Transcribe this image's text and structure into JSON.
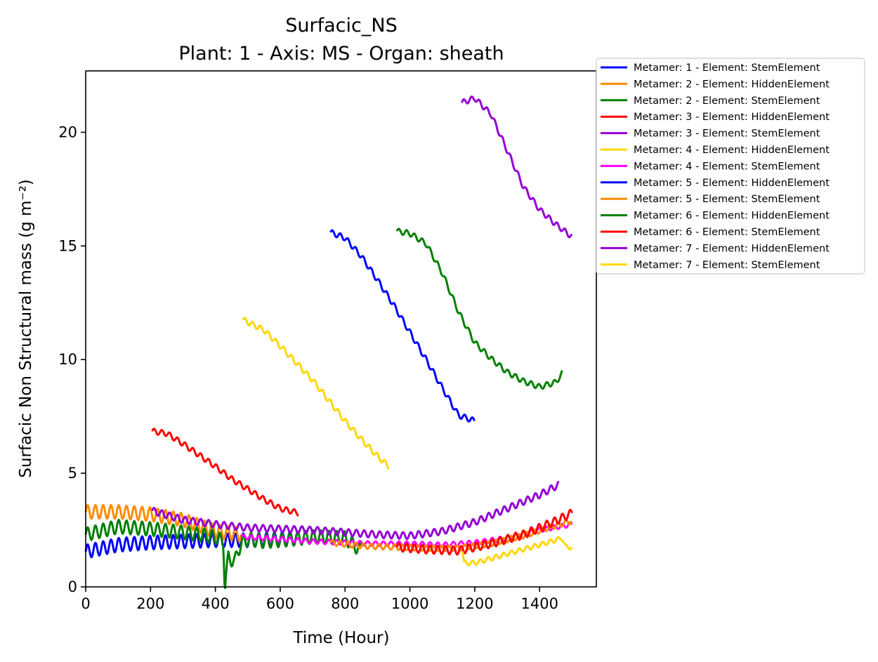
{
  "chart_data": {
    "type": "line",
    "title": "Surfacic_NS",
    "subtitle": "Plant: 1 - Axis: MS - Organ: sheath",
    "xlabel": "Time (Hour)",
    "ylabel": "Surfacic Non Structural mass (g m⁻²)",
    "xlim": [
      0,
      1575
    ],
    "ylim": [
      0,
      22.7
    ],
    "xticks": [
      "0",
      "200",
      "400",
      "600",
      "800",
      "1000",
      "1200",
      "1400"
    ],
    "xtick_values": [
      0,
      200,
      400,
      600,
      800,
      1000,
      1200,
      1400
    ],
    "yticks": [
      "0",
      "5",
      "10",
      "15",
      "20"
    ],
    "ytick_values": [
      0,
      5,
      10,
      15,
      20
    ],
    "grid": false,
    "legend_position": "outside-top-right",
    "series": [
      {
        "name": "Metamer: 1 - Element: StemElement",
        "color": "#0000ff",
        "wave": 0.3,
        "points": [
          [
            0,
            1.55
          ],
          [
            100,
            1.85
          ],
          [
            200,
            1.95
          ],
          [
            300,
            2.0
          ],
          [
            400,
            2.05
          ],
          [
            500,
            2.05
          ],
          [
            600,
            2.1
          ],
          [
            650,
            2.15
          ]
        ]
      },
      {
        "name": "Metamer: 2 - Element: HiddenElement",
        "color": "#ff8c00",
        "wave": 0.3,
        "points": [
          [
            0,
            3.3
          ],
          [
            100,
            3.3
          ],
          [
            200,
            3.2
          ],
          [
            300,
            2.95
          ],
          [
            400,
            2.45
          ],
          [
            480,
            2.3
          ]
        ]
      },
      {
        "name": "Metamer: 2 - Element: StemElement",
        "color": "#008000",
        "wave": 0.3,
        "points": [
          [
            0,
            2.3
          ],
          [
            100,
            2.65
          ],
          [
            200,
            2.55
          ],
          [
            300,
            2.4
          ],
          [
            400,
            2.2
          ],
          [
            425,
            2.0
          ],
          [
            428,
            0.4
          ],
          [
            430,
            0.1
          ],
          [
            440,
            1.3
          ],
          [
            460,
            1.1
          ],
          [
            470,
            1.6
          ],
          [
            480,
            1.9
          ],
          [
            500,
            2.1
          ],
          [
            550,
            2.0
          ],
          [
            600,
            2.05
          ],
          [
            700,
            2.2
          ],
          [
            800,
            2.15
          ],
          [
            840,
            1.7
          ],
          [
            850,
            1.6
          ]
        ]
      },
      {
        "name": "Metamer: 3 - Element: HiddenElement",
        "color": "#ff0000",
        "wave": 0.12,
        "points": [
          [
            205,
            6.85
          ],
          [
            250,
            6.75
          ],
          [
            300,
            6.3
          ],
          [
            350,
            5.8
          ],
          [
            400,
            5.3
          ],
          [
            450,
            4.75
          ],
          [
            500,
            4.3
          ],
          [
            550,
            3.85
          ],
          [
            600,
            3.45
          ],
          [
            658,
            3.25
          ]
        ]
      },
      {
        "name": "Metamer: 3 - Element: StemElement",
        "color": "#9400d3",
        "wave": 0.15,
        "points": [
          [
            205,
            3.35
          ],
          [
            300,
            2.95
          ],
          [
            400,
            2.75
          ],
          [
            500,
            2.6
          ],
          [
            600,
            2.55
          ],
          [
            700,
            2.5
          ],
          [
            800,
            2.4
          ],
          [
            900,
            2.3
          ],
          [
            1000,
            2.25
          ],
          [
            1100,
            2.45
          ],
          [
            1200,
            2.85
          ],
          [
            1300,
            3.45
          ],
          [
            1400,
            4.05
          ],
          [
            1460,
            4.5
          ]
        ]
      },
      {
        "name": "Metamer: 4 - Element: HiddenElement",
        "color": "#ffd700",
        "wave": 0.12,
        "points": [
          [
            485,
            11.75
          ],
          [
            550,
            11.3
          ],
          [
            600,
            10.6
          ],
          [
            650,
            9.85
          ],
          [
            700,
            9.1
          ],
          [
            750,
            8.2
          ],
          [
            800,
            7.3
          ],
          [
            850,
            6.5
          ],
          [
            900,
            5.75
          ],
          [
            935,
            5.3
          ]
        ]
      },
      {
        "name": "Metamer: 4 - Element: StemElement",
        "color": "#ff00ff",
        "wave": 0.1,
        "points": [
          [
            480,
            2.2
          ],
          [
            600,
            2.1
          ],
          [
            700,
            2.0
          ],
          [
            800,
            1.95
          ],
          [
            900,
            1.9
          ],
          [
            1000,
            1.9
          ],
          [
            1100,
            1.85
          ],
          [
            1200,
            1.95
          ],
          [
            1300,
            2.15
          ],
          [
            1400,
            2.5
          ],
          [
            1500,
            2.75
          ]
        ]
      },
      {
        "name": "Metamer: 5 - Element: HiddenElement",
        "color": "#0000ff",
        "wave": 0.12,
        "points": [
          [
            755,
            15.6
          ],
          [
            800,
            15.35
          ],
          [
            850,
            14.55
          ],
          [
            900,
            13.5
          ],
          [
            950,
            12.4
          ],
          [
            1000,
            11.2
          ],
          [
            1050,
            10.0
          ],
          [
            1100,
            8.75
          ],
          [
            1150,
            7.55
          ],
          [
            1200,
            7.3
          ]
        ]
      },
      {
        "name": "Metamer: 5 - Element: StemElement",
        "color": "#ff8c00",
        "wave": 0.12,
        "points": [
          [
            755,
            1.95
          ],
          [
            850,
            1.8
          ],
          [
            950,
            1.75
          ],
          [
            1050,
            1.7
          ],
          [
            1150,
            1.7
          ],
          [
            1250,
            1.9
          ],
          [
            1350,
            2.25
          ],
          [
            1450,
            2.7
          ],
          [
            1500,
            2.9
          ]
        ]
      },
      {
        "name": "Metamer: 6 - Element: HiddenElement",
        "color": "#008000",
        "wave": 0.12,
        "points": [
          [
            960,
            15.65
          ],
          [
            1000,
            15.55
          ],
          [
            1050,
            15.1
          ],
          [
            1100,
            13.8
          ],
          [
            1150,
            12.1
          ],
          [
            1200,
            10.75
          ],
          [
            1250,
            10.05
          ],
          [
            1300,
            9.45
          ],
          [
            1350,
            9.05
          ],
          [
            1400,
            8.8
          ],
          [
            1450,
            9.0
          ],
          [
            1470,
            9.4
          ]
        ]
      },
      {
        "name": "Metamer: 6 - Element: StemElement",
        "color": "#ff0000",
        "wave": 0.18,
        "points": [
          [
            960,
            1.75
          ],
          [
            1050,
            1.65
          ],
          [
            1150,
            1.6
          ],
          [
            1250,
            1.9
          ],
          [
            1350,
            2.3
          ],
          [
            1450,
            2.9
          ],
          [
            1500,
            3.25
          ]
        ]
      },
      {
        "name": "Metamer: 7 - Element: HiddenElement",
        "color": "#9400d3",
        "wave": 0.12,
        "points": [
          [
            1160,
            21.3
          ],
          [
            1200,
            21.5
          ],
          [
            1250,
            20.8
          ],
          [
            1300,
            19.2
          ],
          [
            1350,
            17.6
          ],
          [
            1400,
            16.6
          ],
          [
            1450,
            15.95
          ],
          [
            1500,
            15.4
          ]
        ]
      },
      {
        "name": "Metamer: 7 - Element: StemElement",
        "color": "#ffd700",
        "wave": 0.1,
        "points": [
          [
            1163,
            1.55
          ],
          [
            1166,
            1.05
          ],
          [
            1200,
            1.05
          ],
          [
            1300,
            1.45
          ],
          [
            1400,
            1.85
          ],
          [
            1470,
            2.15
          ],
          [
            1480,
            1.75
          ],
          [
            1500,
            1.75
          ]
        ]
      }
    ]
  }
}
